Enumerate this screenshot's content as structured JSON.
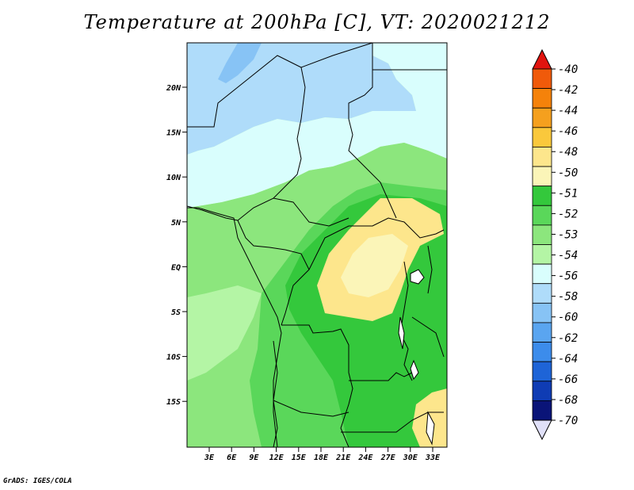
{
  "title": "Temperature at 200hPa [C], VT: 2020021212",
  "credit": "GrADS: IGES/COLA",
  "lat_labels": [
    "20N",
    "15N",
    "10N",
    "5N",
    "EQ",
    "5S",
    "10S",
    "15S"
  ],
  "lon_labels": [
    "3E",
    "6E",
    "9E",
    "12E",
    "15E",
    "18E",
    "21E",
    "24E",
    "27E",
    "30E",
    "33E"
  ],
  "colorbar": {
    "labels": [
      "-40",
      "-42",
      "-44",
      "-46",
      "-48",
      "-50",
      "-51",
      "-52",
      "-53",
      "-54",
      "-56",
      "-58",
      "-60",
      "-62",
      "-64",
      "-66",
      "-68",
      "-70"
    ],
    "top_color": "#e1140f",
    "bottom_color": "#e0e0f8",
    "bin_colors": [
      "#f05a0a",
      "#f5820a",
      "#f5a01e",
      "#fac83c",
      "#fde68c",
      "#fbf5b8",
      "#34c83c",
      "#5ad75a",
      "#8ce67d",
      "#b4f5a5",
      "#d9fefd",
      "#afdcfa",
      "#87c3f5",
      "#5aa5f0",
      "#3c8ceb",
      "#1e64d7",
      "#0f3cb4",
      "#0a1478"
    ]
  },
  "map": {
    "background_color": "#b4f5a5",
    "zones": [
      {
        "name": "north-cold",
        "color": "#afdcfa"
      },
      {
        "name": "north-coldest",
        "color": "#87c3f5"
      },
      {
        "name": "sahel",
        "color": "#d9fefd"
      },
      {
        "name": "central-green",
        "color": "#8ce67d"
      },
      {
        "name": "east-green",
        "color": "#5ad75a"
      },
      {
        "name": "east-dark",
        "color": "#34c83c"
      },
      {
        "name": "congo-warm",
        "color": "#fde68c"
      },
      {
        "name": "congo-core",
        "color": "#fbf5b8"
      },
      {
        "name": "south-warm",
        "color": "#fde68c"
      }
    ]
  }
}
